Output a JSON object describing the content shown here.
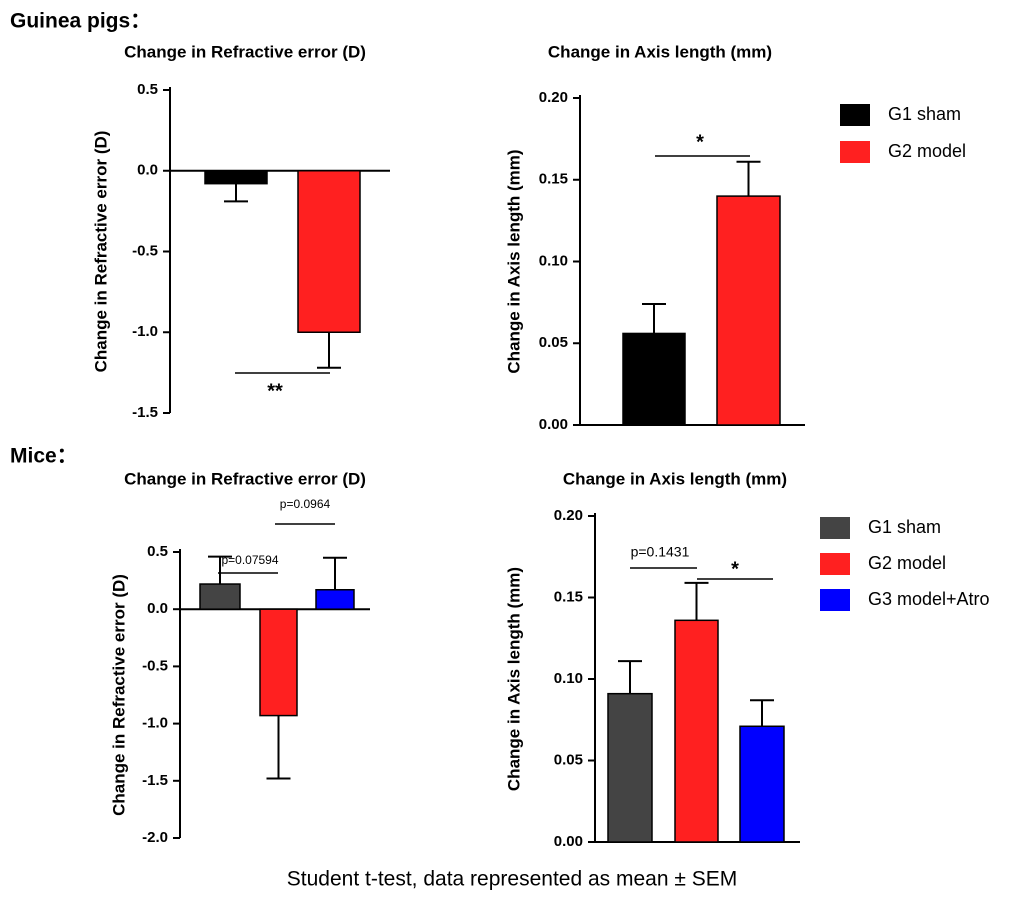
{
  "sections": [
    "Guinea pigs：",
    "Mice："
  ],
  "footnote": "Student  t-test, data represented as mean ± SEM",
  "chart_data": [
    {
      "type": "bar",
      "title": "Change in Refractive error  (D)",
      "y_label": "Change in Refractive error  (D)",
      "categories": [
        null
      ],
      "series": [
        {
          "name": "G1 sham",
          "color": "#000000",
          "values": [
            -0.08
          ],
          "errors": [
            0.11
          ]
        },
        {
          "name": "G2 model",
          "color": "#ff2020",
          "values": [
            -1.0
          ],
          "errors": [
            0.22
          ]
        }
      ],
      "ylim": [
        -1.5,
        0.5
      ],
      "yticks": [
        0.5,
        {
          "value": 0,
          "label": "0.0"
        },
        -0.5,
        {
          "value": -1,
          "label": "-1.0"
        },
        -1.5
      ],
      "annotations": [
        "**"
      ],
      "legend": false
    },
    {
      "type": "bar",
      "title": "Change in Axis length (mm)",
      "y_label": "Change in Axis length (mm)",
      "categories": [
        null
      ],
      "series": [
        {
          "name": "G1 sham",
          "color": "#000000",
          "values": [
            0.056
          ],
          "errors": [
            0.018
          ]
        },
        {
          "name": "G2 model",
          "color": "#ff2020",
          "values": [
            0.14
          ],
          "errors": [
            0.021
          ]
        }
      ],
      "ylim": [
        0,
        0.2
      ],
      "yticks": [
        {
          "value": 0,
          "label": "0.00"
        },
        0.05,
        {
          "value": 0.1,
          "label": "0.10"
        },
        0.15,
        {
          "value": 0.2,
          "label": "0.20"
        }
      ],
      "annotations": [
        "*"
      ],
      "legend": true
    },
    {
      "type": "bar",
      "title": "Change in Refractive error  (D)",
      "y_label": "Change in Refractive error  (D)",
      "categories": [
        null
      ],
      "series": [
        {
          "name": "G1 sham",
          "color": "#444444",
          "values": [
            0.22
          ],
          "errors": [
            0.24
          ]
        },
        {
          "name": "G2 model",
          "color": "#ff2020",
          "values": [
            -0.93
          ],
          "errors": [
            0.55
          ]
        },
        {
          "name": "G3 model+Atro",
          "color": "#0000ff",
          "values": [
            0.17
          ],
          "errors": [
            0.28
          ]
        }
      ],
      "ylim": [
        -2.0,
        0.5
      ],
      "yticks": [
        0.5,
        {
          "value": 0,
          "label": "0.0"
        },
        -0.5,
        {
          "value": -1,
          "label": "-1.0"
        },
        -1.5,
        {
          "value": -2,
          "label": "-2.0"
        }
      ],
      "annotations": [
        "p=0.07594",
        "p=0.0964"
      ],
      "legend": false
    },
    {
      "type": "bar",
      "title": "Change in Axis length (mm)",
      "y_label": "Change in Axis length (mm)",
      "categories": [
        null
      ],
      "series": [
        {
          "name": "G1 sham",
          "color": "#444444",
          "values": [
            0.091
          ],
          "errors": [
            0.02
          ]
        },
        {
          "name": "G2 model",
          "color": "#ff2020",
          "values": [
            0.136
          ],
          "errors": [
            0.023
          ]
        },
        {
          "name": "G3 model+Atro",
          "color": "#0000ff",
          "values": [
            0.071
          ],
          "errors": [
            0.016
          ]
        }
      ],
      "ylim": [
        0,
        0.2
      ],
      "yticks": [
        {
          "value": 0,
          "label": "0.00"
        },
        0.05,
        {
          "value": 0.1,
          "label": "0.10"
        },
        0.15,
        {
          "value": 0.2,
          "label": "0.20"
        }
      ],
      "annotations": [
        "p=0.1431",
        "*"
      ],
      "legend": true
    }
  ]
}
